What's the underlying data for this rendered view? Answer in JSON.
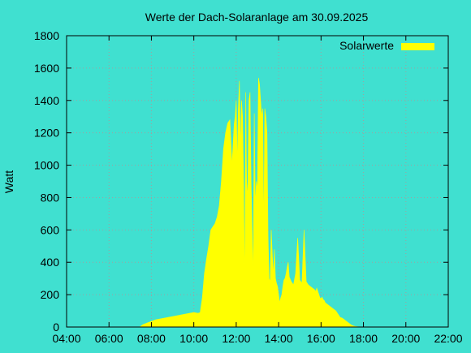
{
  "chart_data": {
    "type": "area",
    "title": "Werte der Dach-Solaranlage am 30.09.2025",
    "xlabel": "",
    "ylabel": "Watt",
    "xlim": [
      4,
      22
    ],
    "ylim": [
      0,
      1800
    ],
    "xticks": [
      {
        "value": 4,
        "label": "04:00"
      },
      {
        "value": 6,
        "label": "06:00"
      },
      {
        "value": 8,
        "label": "08:00"
      },
      {
        "value": 10,
        "label": "10:00"
      },
      {
        "value": 12,
        "label": "12:00"
      },
      {
        "value": 14,
        "label": "14:00"
      },
      {
        "value": 16,
        "label": "16:00"
      },
      {
        "value": 18,
        "label": "18:00"
      },
      {
        "value": 20,
        "label": "20:00"
      },
      {
        "value": 22,
        "label": "22:00"
      }
    ],
    "yticks": [
      0,
      200,
      400,
      600,
      800,
      1000,
      1200,
      1400,
      1600,
      1800
    ],
    "grid": true,
    "legend_position": "top-right",
    "colors": {
      "background": "#40E0D0",
      "series": "#FFFF00",
      "grid": "#A0A0A0",
      "axis": "#000000"
    },
    "series": [
      {
        "name": "Solarwerte",
        "x": [
          7.45,
          7.6,
          7.8,
          8.0,
          8.2,
          8.4,
          8.6,
          8.8,
          9.0,
          9.2,
          9.4,
          9.6,
          9.8,
          10.0,
          10.2,
          10.3,
          10.4,
          10.5,
          10.6,
          10.7,
          10.8,
          10.9,
          11.0,
          11.1,
          11.2,
          11.3,
          11.4,
          11.5,
          11.6,
          11.7,
          11.8,
          11.9,
          11.95,
          12.0,
          12.05,
          12.1,
          12.15,
          12.2,
          12.25,
          12.3,
          12.35,
          12.4,
          12.45,
          12.5,
          12.55,
          12.6,
          12.65,
          12.7,
          12.75,
          12.8,
          12.85,
          12.9,
          12.95,
          13.0,
          13.05,
          13.1,
          13.15,
          13.2,
          13.25,
          13.3,
          13.35,
          13.4,
          13.45,
          13.5,
          13.55,
          13.6,
          13.65,
          13.7,
          13.75,
          13.8,
          13.85,
          13.9,
          13.95,
          14.0,
          14.05,
          14.1,
          14.15,
          14.2,
          14.25,
          14.3,
          14.35,
          14.4,
          14.45,
          14.5,
          14.6,
          14.7,
          14.8,
          14.9,
          15.0,
          15.1,
          15.2,
          15.3,
          15.4,
          15.5,
          15.6,
          15.7,
          15.75,
          15.8,
          15.85,
          15.9,
          15.95,
          16.0,
          16.05,
          16.1,
          16.15,
          16.2,
          16.3,
          16.4,
          16.5,
          16.6,
          16.7,
          16.8,
          16.9,
          17.0,
          17.1,
          17.2,
          17.3,
          17.4,
          17.5,
          17.6,
          17.7,
          17.8,
          17.9,
          18.0,
          18.1,
          18.2,
          18.35
        ],
        "values": [
          0,
          15,
          25,
          35,
          45,
          50,
          55,
          60,
          65,
          70,
          75,
          80,
          85,
          90,
          85,
          90,
          180,
          330,
          420,
          500,
          600,
          620,
          640,
          680,
          750,
          900,
          1100,
          1200,
          1260,
          1280,
          1000,
          1250,
          1300,
          1400,
          1000,
          1350,
          1520,
          1100,
          1400,
          1300,
          900,
          230,
          1450,
          800,
          900,
          1400,
          1450,
          900,
          600,
          300,
          1320,
          750,
          900,
          850,
          1540,
          1500,
          1400,
          1300,
          1350,
          600,
          1350,
          1300,
          1200,
          560,
          300,
          280,
          600,
          450,
          320,
          480,
          300,
          270,
          250,
          200,
          150,
          180,
          200,
          250,
          290,
          300,
          330,
          370,
          400,
          310,
          280,
          260,
          330,
          550,
          290,
          270,
          600,
          280,
          260,
          250,
          240,
          230,
          220,
          240,
          220,
          200,
          180,
          175,
          185,
          170,
          165,
          150,
          140,
          130,
          120,
          110,
          100,
          80,
          60,
          55,
          45,
          35,
          25,
          15,
          8,
          4,
          2,
          1,
          0.5,
          0.2,
          0.1,
          0.1,
          0
        ]
      }
    ]
  }
}
